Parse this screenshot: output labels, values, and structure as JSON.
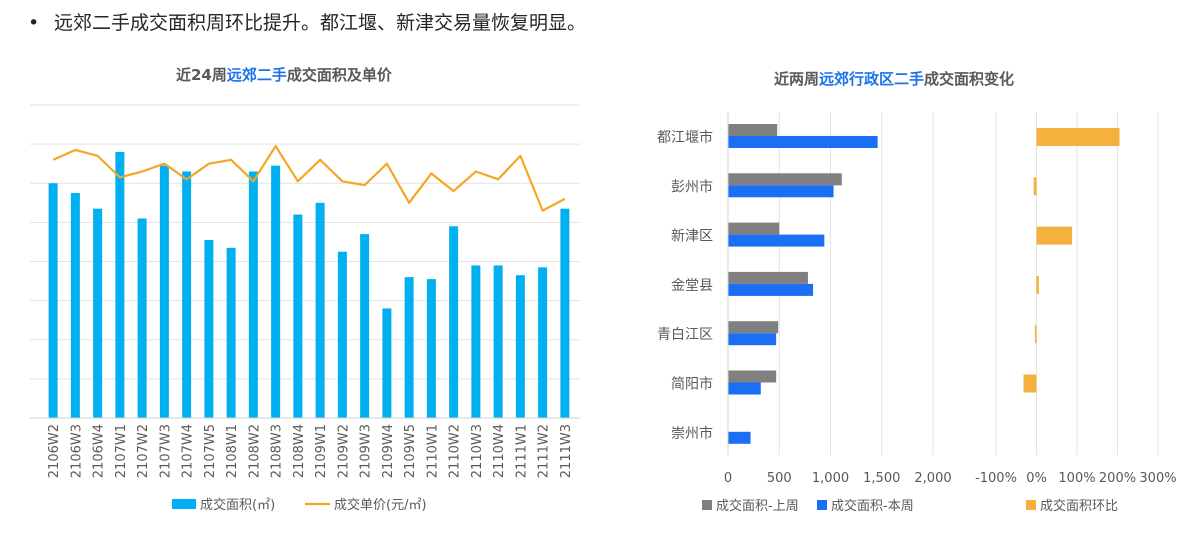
{
  "headline": {
    "bullet": "•",
    "text": "远郊二手成交面积周环比提升。都江堰、新津交易量恢复明显。"
  },
  "chart_data": [
    {
      "type": "bar+line",
      "title_parts": [
        "近24周",
        "远郊二手",
        "成交面积及单价"
      ],
      "categories": [
        "2106W2",
        "2106W3",
        "2106W4",
        "2107W1",
        "2107W2",
        "2107W3",
        "2107W4",
        "2107W5",
        "2108W1",
        "2108W2",
        "2108W3",
        "2108W4",
        "2109W1",
        "2109W2",
        "2109W3",
        "2109W4",
        "2109W5",
        "2110W1",
        "2110W2",
        "2110W3",
        "2110W4",
        "2111W1",
        "2111W2",
        "2111W3"
      ],
      "series": [
        {
          "name": "成交面积(㎡)",
          "type": "bar",
          "color": "#00b0f0",
          "values": [
            60,
            57.5,
            53.5,
            68,
            51,
            64.5,
            63,
            45.5,
            43.5,
            63,
            64.5,
            52,
            55,
            42.5,
            47,
            28,
            36,
            35.5,
            49,
            39,
            39,
            36.5,
            38.5,
            53.5
          ]
        },
        {
          "name": "成交单价(元/㎡)",
          "type": "line",
          "color": "#f5a623",
          "values": [
            66,
            68.5,
            67,
            61.5,
            63,
            65,
            61,
            65,
            66,
            60.5,
            69.5,
            60.5,
            66,
            60.5,
            59.5,
            65,
            55,
            62.5,
            58,
            63,
            61,
            67,
            53,
            56
          ]
        }
      ],
      "ylim": [
        0,
        80
      ],
      "gridlines": 8,
      "y_tick_labels_visible": false,
      "legend": "bottom"
    },
    {
      "type": "horizontal-bar",
      "title_parts": [
        "近两周",
        "远郊行政区二手",
        "成交面积变化"
      ],
      "categories": [
        "都江堰市",
        "彭州市",
        "新津区",
        "金堂县",
        "青白江区",
        "简阳市",
        "崇州市"
      ],
      "series": [
        {
          "name": "成交面积-上周",
          "color": "#808080",
          "values": [
            480,
            1110,
            500,
            780,
            490,
            470,
            0
          ]
        },
        {
          "name": "成交面积-本周",
          "color": "#1a6ff5",
          "values": [
            1460,
            1030,
            940,
            830,
            470,
            320,
            220
          ]
        }
      ],
      "xlim": [
        0,
        2000
      ],
      "x_ticks": [
        "0",
        "500",
        "1,000",
        "1,500",
        "2,000"
      ],
      "x_tick_values": [
        0,
        500,
        1000,
        1500,
        2000
      ],
      "legend": "bottom"
    },
    {
      "type": "horizontal-bar",
      "categories": [
        "都江堰市",
        "彭州市",
        "新津区",
        "金堂县",
        "青白江区",
        "简阳市",
        "崇州市"
      ],
      "series": [
        {
          "name": "成交面积环比",
          "color": "#f5b13d",
          "values": [
            205,
            -7,
            88,
            6,
            -4,
            -32,
            0
          ]
        }
      ],
      "xlim": [
        -100,
        300
      ],
      "x_ticks": [
        "-100%",
        "0%",
        "100%",
        "200%",
        "300%"
      ],
      "x_tick_values": [
        -100,
        0,
        100,
        200,
        300
      ],
      "legend": "bottom"
    }
  ]
}
